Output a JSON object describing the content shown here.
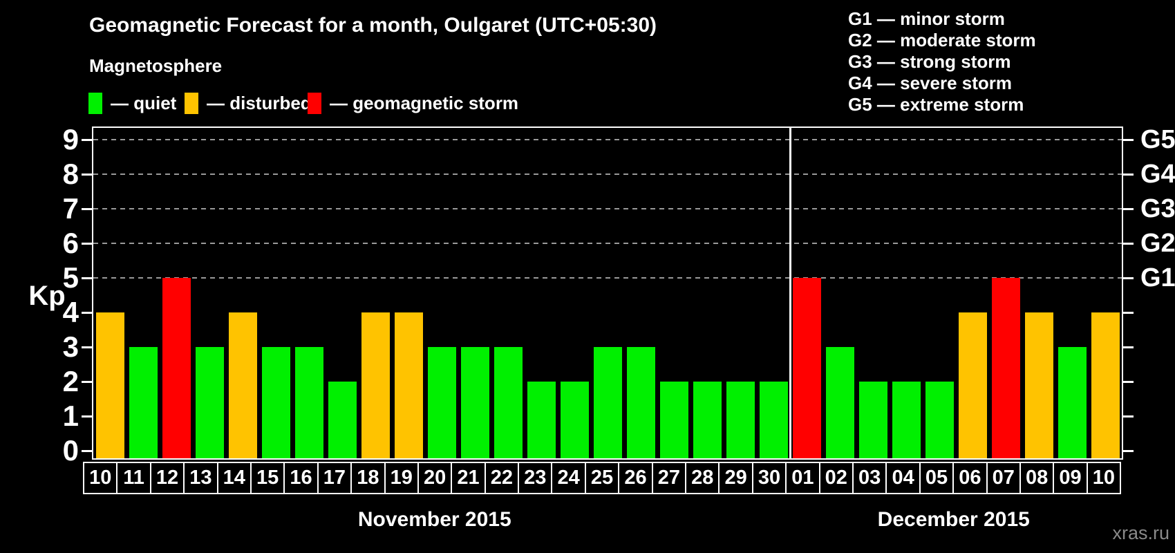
{
  "title": "Geomagnetic Forecast for a month, Oulgaret (UTC+05:30)",
  "subtitle": "Magnetosphere",
  "legend": {
    "items": [
      {
        "key": "quiet",
        "label": "— quiet",
        "color": "#00F000"
      },
      {
        "key": "disturbed",
        "label": "— disturbed",
        "color": "#FFC300"
      },
      {
        "key": "storm",
        "label": "— geomagnetic storm",
        "color": "#FF0000"
      }
    ]
  },
  "g_legend": [
    "G1 — minor storm",
    "G2 — moderate storm",
    "G3 — strong storm",
    "G4 — severe storm",
    "G5 — extreme storm"
  ],
  "watermark": "xras.ru",
  "colors": {
    "background": "#000000",
    "axis": "#FFFFFF",
    "gridline": "#9A9A9A",
    "quiet": "#00F000",
    "disturbed": "#FFC300",
    "storm": "#FF0000",
    "watermark": "#8A8A8A"
  },
  "chart_data": {
    "type": "bar",
    "title": "Geomagnetic Forecast for a month, Oulgaret (UTC+05:30)",
    "xlabel": "",
    "ylabel": "Kp",
    "ylim": [
      0,
      9
    ],
    "yticks": [
      0,
      1,
      2,
      3,
      4,
      5,
      6,
      7,
      8,
      9
    ],
    "gridlines_at": [
      5,
      6,
      7,
      8,
      9
    ],
    "grid": "dashed",
    "legend_position": "top-left",
    "right_axis": [
      {
        "kp": 5,
        "label": "G1"
      },
      {
        "kp": 6,
        "label": "G2"
      },
      {
        "kp": 7,
        "label": "G3"
      },
      {
        "kp": 8,
        "label": "G4"
      },
      {
        "kp": 9,
        "label": "G5"
      }
    ],
    "months": [
      {
        "label": "November 2015",
        "key": "nov",
        "days": 21
      },
      {
        "label": "December 2015",
        "key": "dec",
        "days": 10
      }
    ],
    "categories": [
      "10",
      "11",
      "12",
      "13",
      "14",
      "15",
      "16",
      "17",
      "18",
      "19",
      "20",
      "21",
      "22",
      "23",
      "24",
      "25",
      "26",
      "27",
      "28",
      "29",
      "30",
      "01",
      "02",
      "03",
      "04",
      "05",
      "06",
      "07",
      "08",
      "09",
      "10"
    ],
    "values": [
      4,
      3,
      5,
      3,
      4,
      3,
      3,
      2,
      4,
      4,
      3,
      3,
      3,
      2,
      2,
      3,
      3,
      2,
      2,
      2,
      2,
      5,
      3,
      2,
      2,
      2,
      4,
      5,
      4,
      3,
      4
    ],
    "statuses": [
      "disturbed",
      "quiet",
      "storm",
      "quiet",
      "disturbed",
      "quiet",
      "quiet",
      "quiet",
      "disturbed",
      "disturbed",
      "quiet",
      "quiet",
      "quiet",
      "quiet",
      "quiet",
      "quiet",
      "quiet",
      "quiet",
      "quiet",
      "quiet",
      "quiet",
      "storm",
      "quiet",
      "quiet",
      "quiet",
      "quiet",
      "disturbed",
      "storm",
      "disturbed",
      "quiet",
      "disturbed"
    ]
  }
}
